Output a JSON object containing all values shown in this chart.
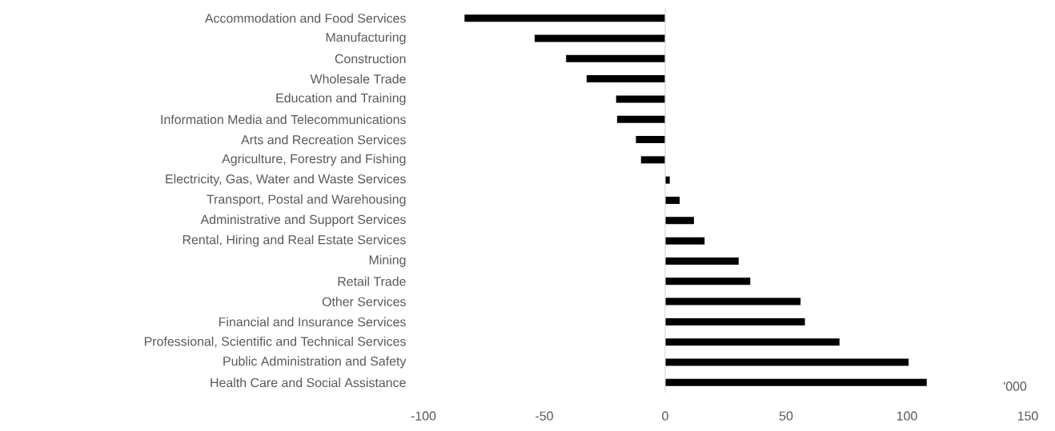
{
  "chart_data": {
    "type": "bar",
    "orientation": "horizontal",
    "xlabel": "'000",
    "categories": [
      "Accommodation and Food Services",
      "Manufacturing",
      "Construction",
      "Wholesale Trade",
      "Education and Training",
      "Information Media and Telecommunications",
      "Arts and Recreation Services",
      "Agriculture, Forestry and Fishing",
      "Electricity, Gas, Water and Waste Services",
      "Transport, Postal and Warehousing",
      "Administrative and Support Services",
      "Rental, Hiring and Real Estate Services",
      "Mining",
      "Retail Trade",
      "Other Services",
      "Financial and Insurance Services",
      "Professional, Scientific and Technical Services",
      "Public Administration and Safety",
      "Health Care and Social Assistance"
    ],
    "values": [
      -83,
      -54,
      -41,
      -32.5,
      -20.3,
      -19.9,
      -12.1,
      -10,
      1.9,
      6,
      11.9,
      16.3,
      30.4,
      35.2,
      56,
      57.8,
      72.1,
      100.7,
      108.2
    ],
    "color": "#000000",
    "xlim": [
      -100,
      150
    ],
    "xticks": [
      -100,
      -50,
      0,
      50,
      100,
      150
    ],
    "ref_lines": [
      {
        "axis": "x",
        "value": 0,
        "color": "#d9d9d9"
      }
    ]
  }
}
